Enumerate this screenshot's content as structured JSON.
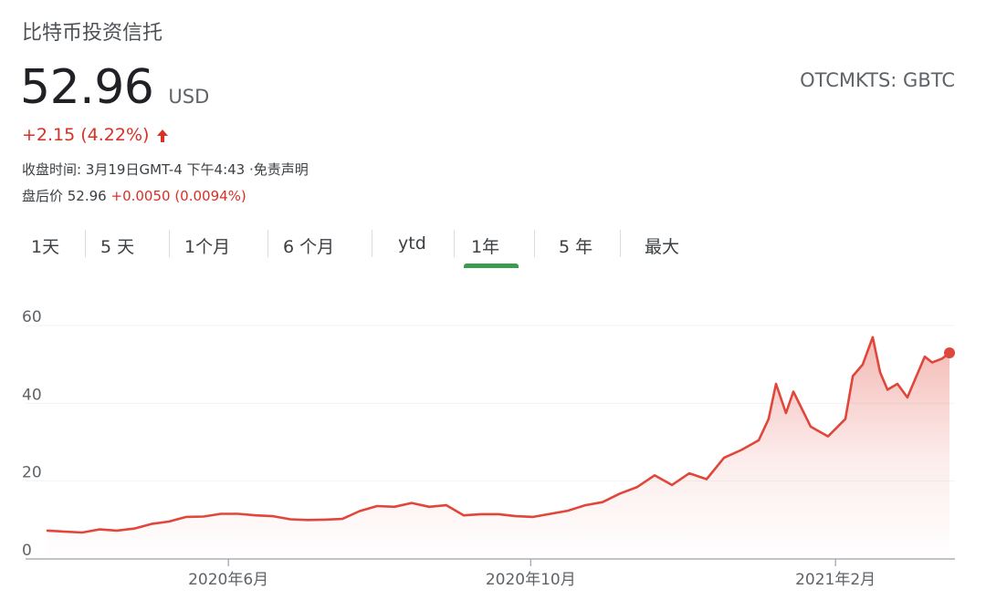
{
  "header": {
    "name": "比特币投资信托",
    "price": "52.96",
    "currency": "USD",
    "ticker": "OTCMKTS: GBTC",
    "change": "+2.15 (4.22%)",
    "close_time": "收盘时间: 3月19日GMT-4 下午4:43 ·免责声明",
    "after_hours_label": "盘后价 52.96",
    "after_hours_change": "+0.0050 (0.0094%)"
  },
  "tabs": [
    {
      "label": "1天",
      "selected": false
    },
    {
      "label": "5 天",
      "selected": false
    },
    {
      "label": "1个月",
      "selected": false
    },
    {
      "label": "6 个月",
      "selected": false
    },
    {
      "label": "ytd",
      "selected": false
    },
    {
      "label": "1年",
      "selected": true
    },
    {
      "label": "5 年",
      "selected": false
    },
    {
      "label": "最大",
      "selected": false
    }
  ],
  "colors": {
    "line": "#e0463a",
    "positive": "#d93025",
    "selected_tab": "#3c9b4f",
    "grid": "#f1f3f4"
  },
  "chart_data": {
    "type": "area",
    "ylim": [
      0,
      60
    ],
    "y_ticks": [
      0,
      20,
      40,
      60
    ],
    "x_ticks": [
      "2020年6月",
      "2020年10月",
      "2021年2月"
    ],
    "grid": true,
    "x": [
      "2020-03-20",
      "2020-03-27",
      "2020-04-03",
      "2020-04-10",
      "2020-04-17",
      "2020-04-24",
      "2020-05-01",
      "2020-05-08",
      "2020-05-15",
      "2020-05-22",
      "2020-05-29",
      "2020-06-05",
      "2020-06-12",
      "2020-06-19",
      "2020-06-26",
      "2020-07-03",
      "2020-07-10",
      "2020-07-17",
      "2020-07-24",
      "2020-07-31",
      "2020-08-07",
      "2020-08-14",
      "2020-08-21",
      "2020-08-28",
      "2020-09-04",
      "2020-09-11",
      "2020-09-18",
      "2020-09-25",
      "2020-10-02",
      "2020-10-09",
      "2020-10-16",
      "2020-10-23",
      "2020-10-30",
      "2020-11-06",
      "2020-11-13",
      "2020-11-20",
      "2020-11-27",
      "2020-12-04",
      "2020-12-11",
      "2020-12-18",
      "2020-12-25",
      "2021-01-01",
      "2021-01-05",
      "2021-01-08",
      "2021-01-12",
      "2021-01-15",
      "2021-01-22",
      "2021-01-29",
      "2021-02-05",
      "2021-02-08",
      "2021-02-12",
      "2021-02-16",
      "2021-02-19",
      "2021-02-22",
      "2021-02-26",
      "2021-03-02",
      "2021-03-05",
      "2021-03-09",
      "2021-03-12",
      "2021-03-16",
      "2021-03-19"
    ],
    "series": [
      {
        "values": [
          7.3,
          7.0,
          6.8,
          7.6,
          7.3,
          7.8,
          9.0,
          9.6,
          10.8,
          10.9,
          11.6,
          11.6,
          11.2,
          11.0,
          10.2,
          10.0,
          10.1,
          10.3,
          12.3,
          13.6,
          13.4,
          14.4,
          13.4,
          13.8,
          11.2,
          11.5,
          11.5,
          11.0,
          10.8,
          11.6,
          12.4,
          13.8,
          14.6,
          16.8,
          18.5,
          21.5,
          19.0,
          22.0,
          20.5,
          26.0,
          28.0,
          30.5,
          36.0,
          45.0,
          37.5,
          43.0,
          34.0,
          31.5,
          36.0,
          47.0,
          50.0,
          57.0,
          48.0,
          43.5,
          45.0,
          41.5,
          46.0,
          52.0,
          50.5,
          51.5,
          52.96
        ]
      }
    ]
  }
}
